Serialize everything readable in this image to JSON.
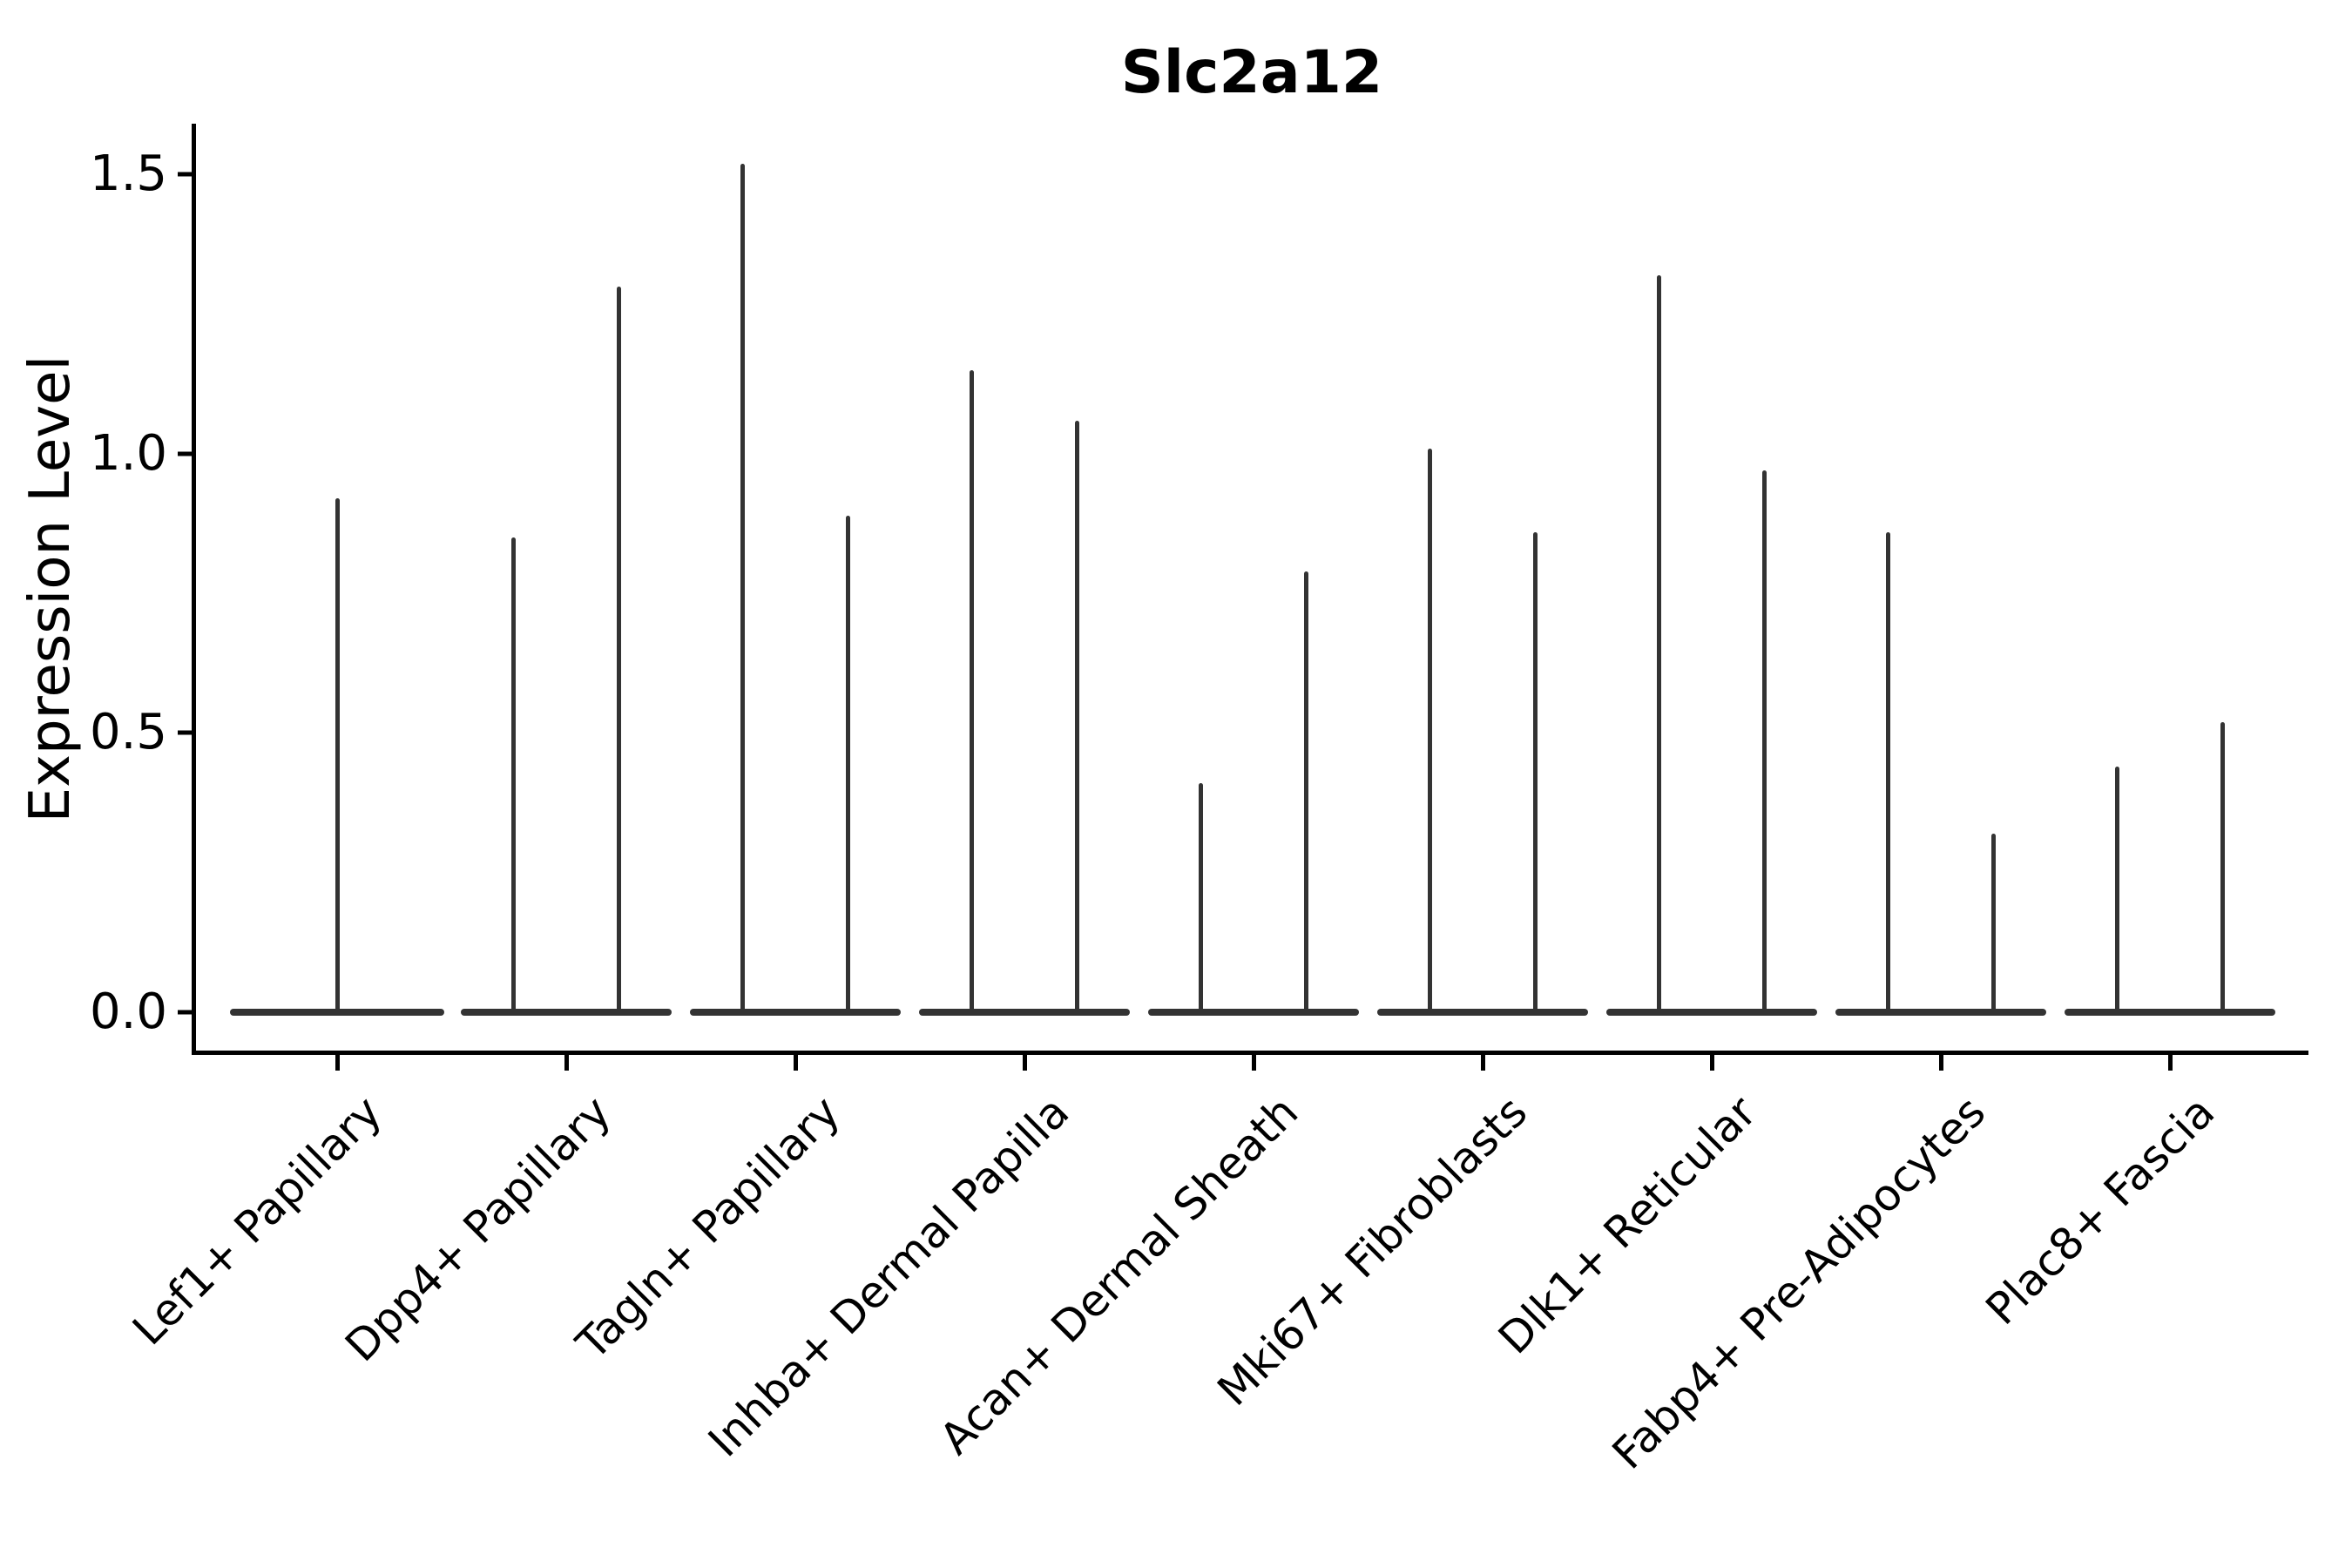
{
  "title": "Slc2a12",
  "axis": {
    "ylabel": "Expression Level",
    "ytick_labels": [
      "0.0",
      "0.5",
      "1.0",
      "1.5"
    ]
  },
  "colors": {
    "violin": "#333333",
    "axis": "#000000",
    "text": "#000000",
    "background": "#ffffff"
  },
  "chart_data": {
    "type": "violin",
    "title": "Slc2a12",
    "xlabel": "",
    "ylabel": "Expression Level",
    "ylim": [
      -0.07,
      1.59
    ],
    "yticks": [
      0.0,
      0.5,
      1.0,
      1.5
    ],
    "grid": false,
    "legend": "none",
    "baseline_bulk_value": 0.0,
    "categories": [
      "Lef1+ Papillary",
      "Dpp4+ Papillary",
      "Tagln+ Papillary",
      "Inhba+ Dermal Papilla",
      "Acan+ Dermal Sheath",
      "Mki67+ Fibroblasts",
      "Dlk1+ Reticular",
      "Fabp4+ Pre-Adipocytes",
      "Plac8+ Fascia"
    ],
    "series": [
      {
        "category": "Lef1+ Papillary",
        "violins": [
          {
            "min": 0.0,
            "max": 0.92
          }
        ]
      },
      {
        "category": "Dpp4+ Papillary",
        "violins": [
          {
            "min": 0.0,
            "max": 0.85
          },
          {
            "min": 0.0,
            "max": 1.3
          }
        ]
      },
      {
        "category": "Tagln+ Papillary",
        "violins": [
          {
            "min": 0.0,
            "max": 1.52
          },
          {
            "min": 0.0,
            "max": 0.89
          }
        ]
      },
      {
        "category": "Inhba+ Dermal Papilla",
        "violins": [
          {
            "min": 0.0,
            "max": 1.15
          },
          {
            "min": 0.0,
            "max": 1.06
          }
        ]
      },
      {
        "category": "Acan+ Dermal Sheath",
        "violins": [
          {
            "min": 0.0,
            "max": 0.41
          },
          {
            "min": 0.0,
            "max": 0.79
          }
        ]
      },
      {
        "category": "Mki67+ Fibroblasts",
        "violins": [
          {
            "min": 0.0,
            "max": 1.01
          },
          {
            "min": 0.0,
            "max": 0.86
          }
        ]
      },
      {
        "category": "Dlk1+ Reticular",
        "violins": [
          {
            "min": 0.0,
            "max": 1.32
          },
          {
            "min": 0.0,
            "max": 0.97
          }
        ]
      },
      {
        "category": "Fabp4+ Pre-Adipocytes",
        "violins": [
          {
            "min": 0.0,
            "max": 0.86
          },
          {
            "min": 0.0,
            "max": 0.32
          }
        ]
      },
      {
        "category": "Plac8+ Fascia",
        "violins": [
          {
            "min": 0.0,
            "max": 0.44
          },
          {
            "min": 0.0,
            "max": 0.52
          }
        ]
      }
    ]
  }
}
